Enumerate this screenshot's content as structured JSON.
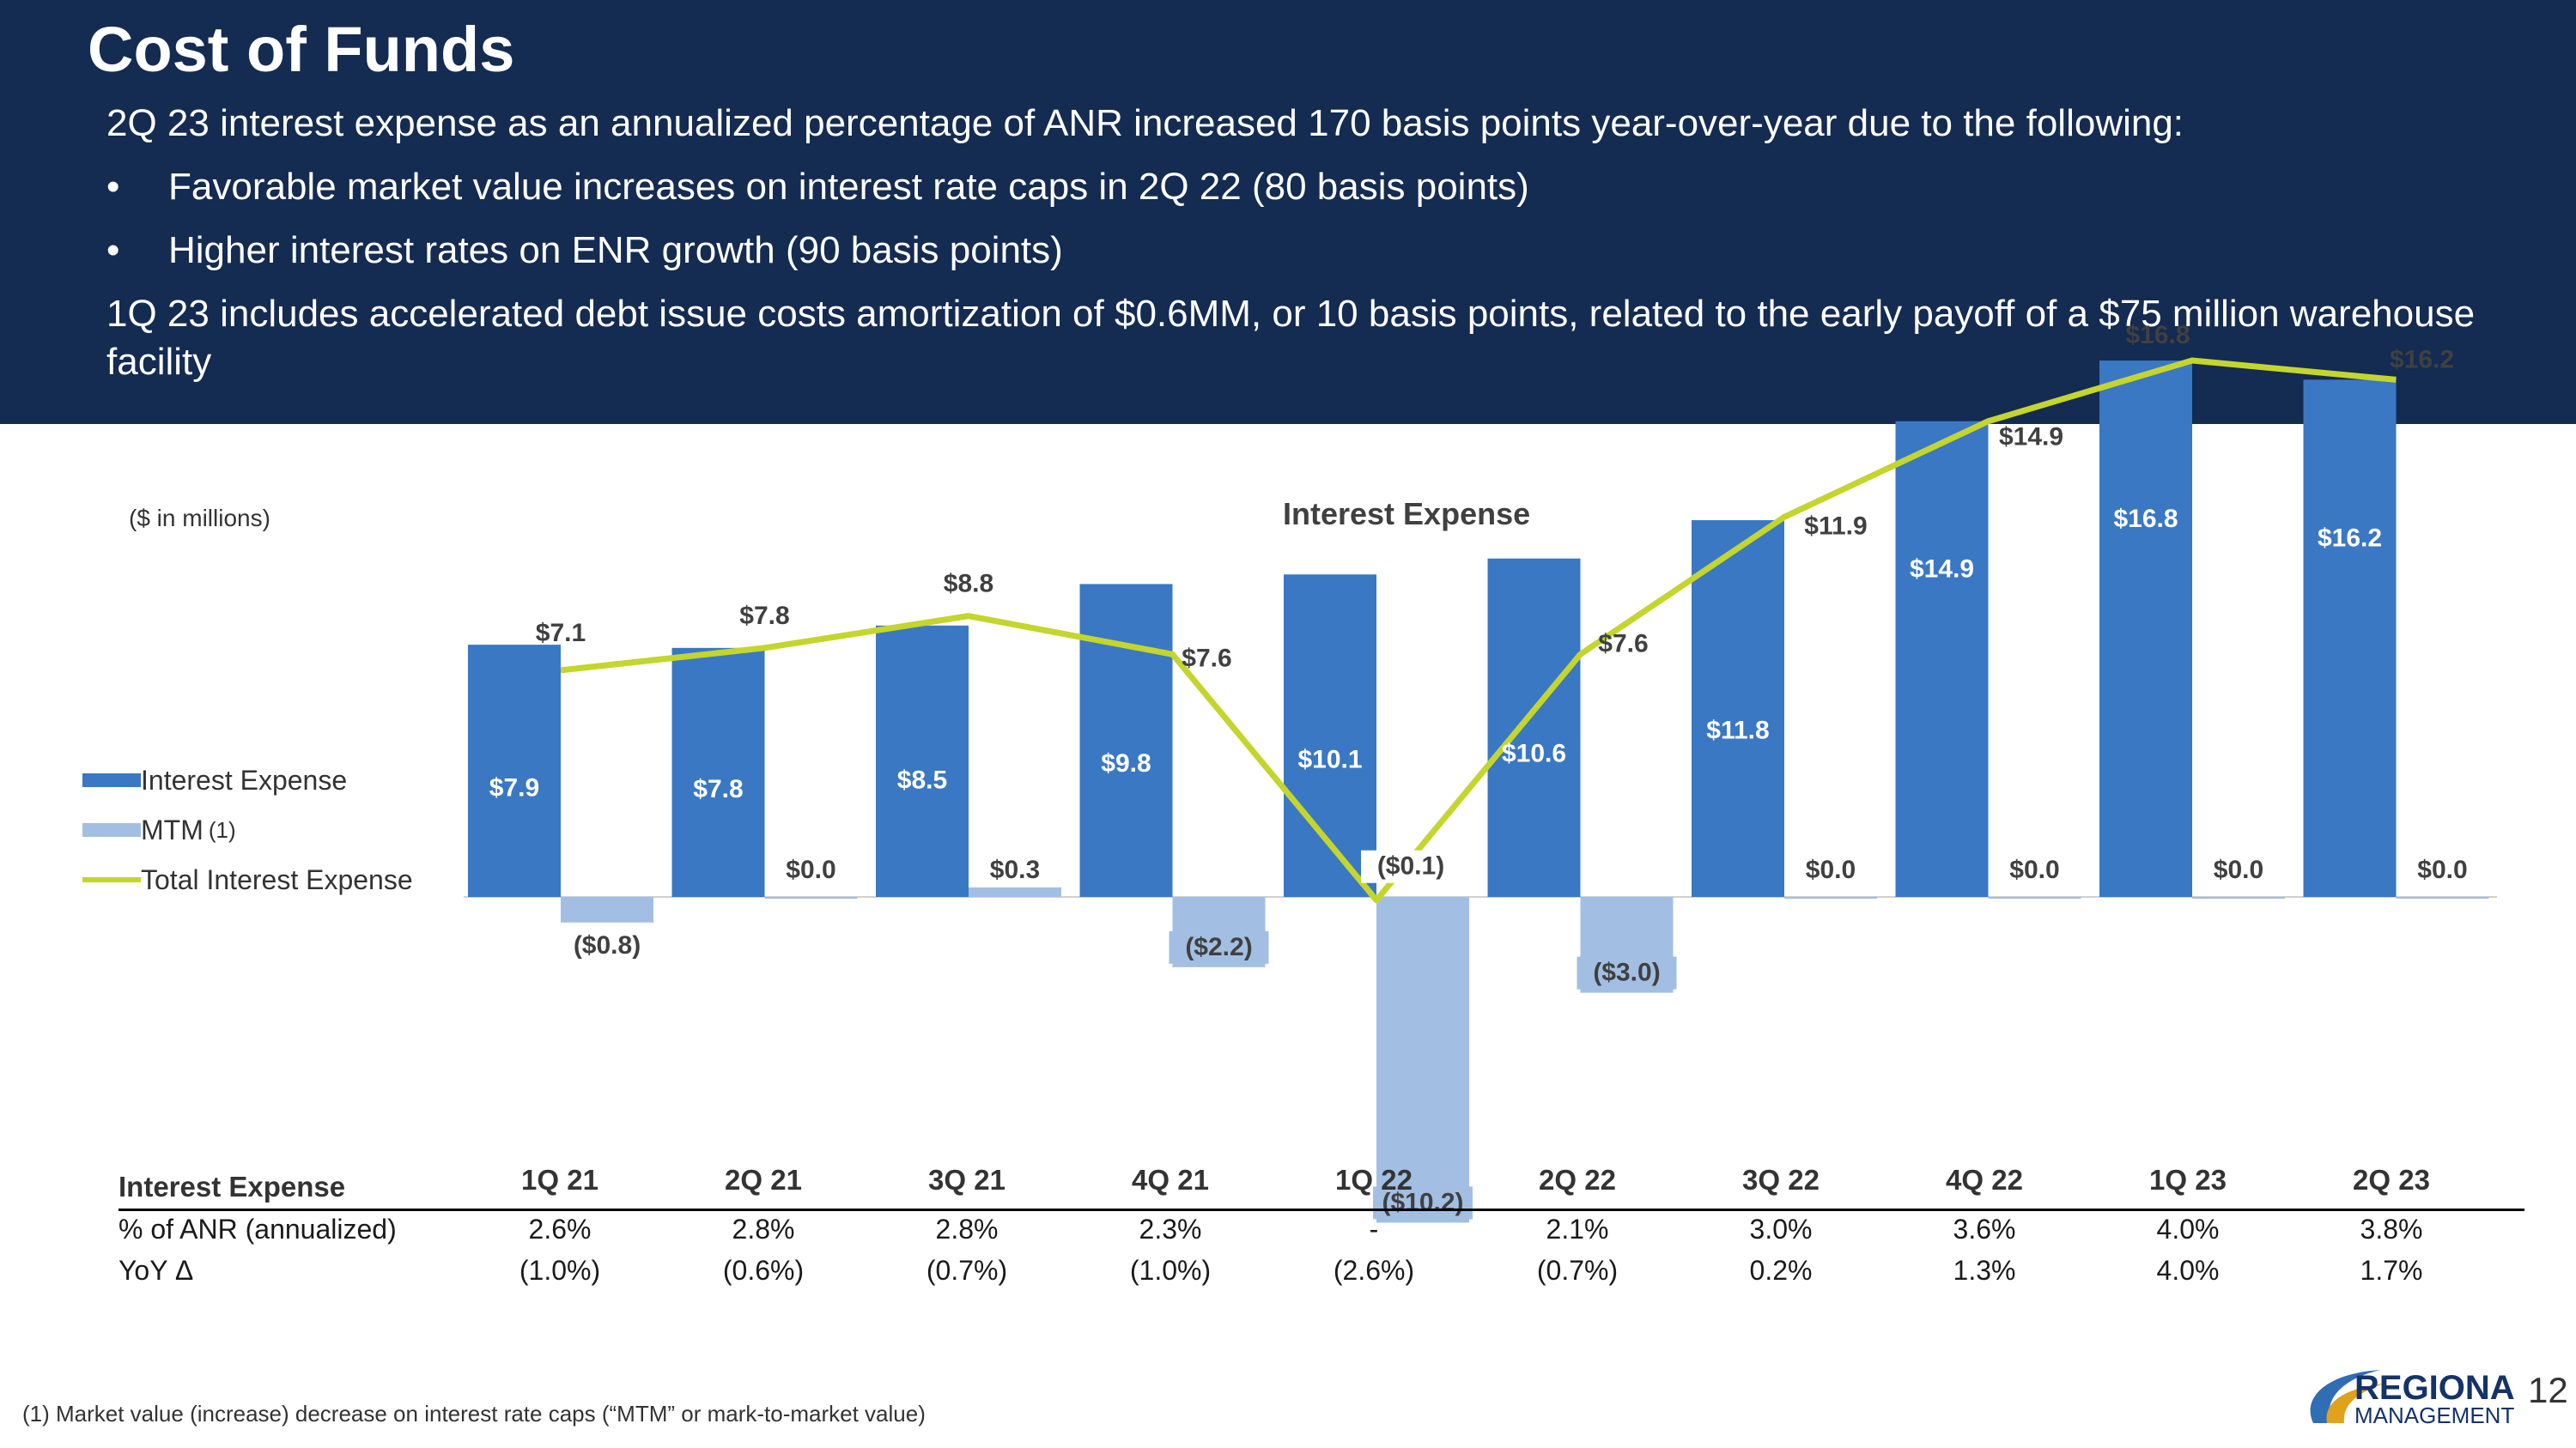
{
  "header": {
    "title": "Cost of Funds",
    "intro": "2Q 23 interest expense as an annualized percentage of ANR increased 170 basis points year-over-year due to the following:",
    "bullets": [
      "Favorable market value increases on interest rate caps in 2Q 22 (80 basis points)",
      "Higher interest rates on ENR growth (90 basis points)"
    ],
    "bullet_mark": "•",
    "note": "1Q 23 includes accelerated debt issue costs amortization of $0.6MM, or 10 basis points, related to the early payoff of a $75 million warehouse facility"
  },
  "chart_data": {
    "type": "bar",
    "title": "Interest Expense",
    "units_note": "($ in millions)",
    "categories": [
      "1Q 21",
      "2Q 21",
      "3Q 21",
      "4Q 21",
      "1Q 22",
      "2Q 22",
      "3Q 22",
      "4Q 22",
      "1Q 23",
      "2Q 23"
    ],
    "series": [
      {
        "name": "Interest Expense",
        "kind": "bar",
        "color": "#3a78c4",
        "values": [
          7.9,
          7.8,
          8.5,
          9.8,
          10.1,
          10.6,
          11.8,
          14.9,
          16.8,
          16.2
        ],
        "labels": [
          "$7.9",
          "$7.8",
          "$8.5",
          "$9.8",
          "$10.1",
          "$10.6",
          "$11.8",
          "$14.9",
          "$16.8",
          "$16.2"
        ]
      },
      {
        "name": "MTM",
        "name_sup": "(1)",
        "kind": "bar",
        "color": "#a2bfe3",
        "values": [
          -0.8,
          0.0,
          0.3,
          -2.2,
          -10.2,
          -3.0,
          0.0,
          0.0,
          0.0,
          0.0
        ],
        "labels": [
          "($0.8)",
          "$0.0",
          "$0.3",
          "($2.2)",
          "($10.2)",
          "($3.0)",
          "$0.0",
          "$0.0",
          "$0.0",
          "$0.0"
        ]
      },
      {
        "name": "Total Interest Expense",
        "kind": "line",
        "color": "#c4d52d",
        "values": [
          7.1,
          7.8,
          8.8,
          7.6,
          -0.1,
          7.6,
          11.9,
          14.9,
          16.8,
          16.2
        ],
        "labels": [
          "$7.1",
          "$7.8",
          "$8.8",
          "$7.6",
          "($0.1)",
          "$7.6",
          "$11.9",
          "$14.9",
          "$16.8",
          "$16.2"
        ]
      }
    ],
    "ylim": [
      -10.7,
      17.9
    ],
    "grid": false,
    "legend": "left"
  },
  "table": {
    "header_label": "Interest Expense",
    "rows": [
      {
        "label": "% of ANR (annualized)",
        "values": [
          "2.6%",
          "2.8%",
          "2.8%",
          "2.3%",
          "-",
          "2.1%",
          "3.0%",
          "3.6%",
          "4.0%",
          "3.8%"
        ]
      },
      {
        "label": "YoY Δ",
        "values": [
          "(1.0%)",
          "(0.6%)",
          "(0.7%)",
          "(1.0%)",
          "(2.6%)",
          "(0.7%)",
          "0.2%",
          "1.3%",
          "4.0%",
          "1.7%"
        ]
      }
    ]
  },
  "footnote": "(1) Market value (increase) decrease on interest rate caps (“MTM” or mark-to-market value)",
  "logo": {
    "line1": "REGIONAL",
    "line2": "MANAGEMENT"
  },
  "page_number": "12"
}
